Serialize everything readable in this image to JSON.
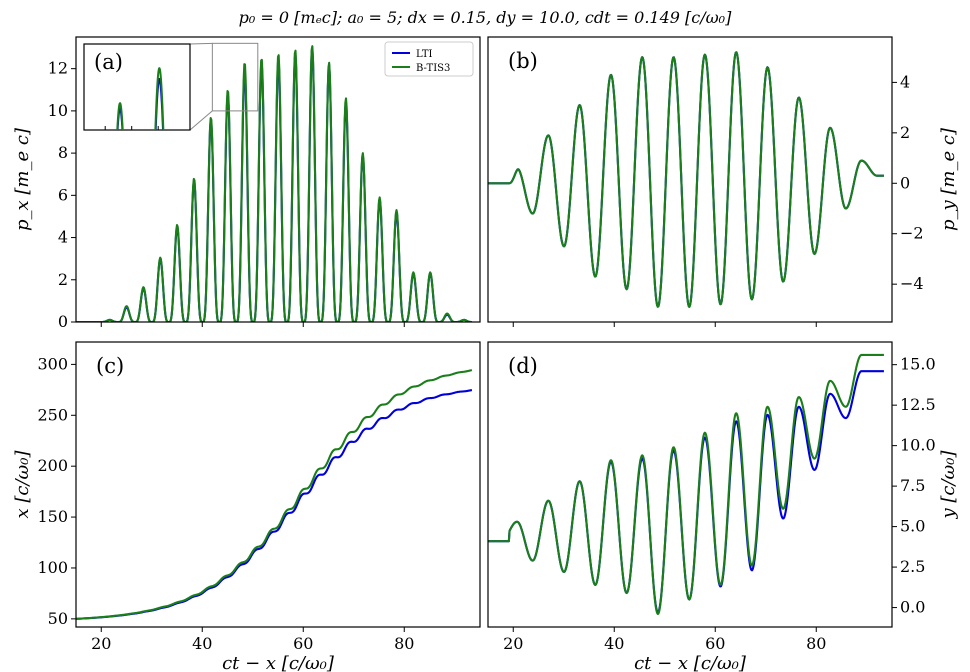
{
  "figure": {
    "title": "p₀ = 0 [mₑc];  a₀ = 5;  dx = 0.15,  dy = 10.0,  cdt = 0.149 [c/ω₀]",
    "legend": {
      "placement": "top-right of panel (a)",
      "items": [
        "LTI",
        "B-TIS3"
      ]
    },
    "colors": {
      "LTI": "#0000dd",
      "B-TIS3": "#1a7f1a"
    }
  },
  "chart_data": [
    {
      "id": "a",
      "type": "line",
      "panel_label": "(a)",
      "xlabel": "",
      "ylabel": "p_x [m_e c]",
      "xlim": [
        15,
        95
      ],
      "ylim": [
        0,
        13.5
      ],
      "yticks": [
        "0",
        "2",
        "4",
        "6",
        "8",
        "10",
        "12"
      ],
      "xticks": [],
      "x_start": 20,
      "x_end": 93.5,
      "wavelength": 6.2,
      "series": [
        {
          "name": "LTI",
          "peaks": [
            0.1,
            0.7,
            1.6,
            3.0,
            4.5,
            6.7,
            9.6,
            10.8,
            11.9,
            12.3,
            12.4,
            12.7,
            13.0,
            12.2,
            10.4,
            7.9,
            5.8,
            5.2,
            2.3,
            2.3,
            0.35,
            0.1
          ]
        },
        {
          "name": "B-TIS3",
          "peaks": [
            0.1,
            0.75,
            1.65,
            3.05,
            4.6,
            6.8,
            9.7,
            11.0,
            12.3,
            12.5,
            12.7,
            12.9,
            13.1,
            12.3,
            10.6,
            8.0,
            5.9,
            5.3,
            2.35,
            2.35,
            0.4,
            0.1
          ]
        }
      ],
      "inset": {
        "panel_label": "(a)",
        "x_range": [
          42,
          51
        ],
        "y_range": [
          10,
          13.2
        ]
      }
    },
    {
      "id": "b",
      "type": "line",
      "panel_label": "(b)",
      "xlabel": "",
      "ylabel": "p_y [m_e c]",
      "xlim": [
        15,
        95
      ],
      "ylim": [
        -5.5,
        5.8
      ],
      "yticks": [
        "−4",
        "−2",
        "0",
        "2",
        "4"
      ],
      "xticks": [],
      "wavelength": 6.2,
      "series": [
        {
          "name": "LTI",
          "extremes": [
            0.6,
            -1.2,
            1.9,
            -2.5,
            3.1,
            -3.7,
            4.3,
            -4.2,
            5.0,
            -4.9,
            5.0,
            -4.9,
            5.1,
            -4.8,
            5.2,
            -4.6,
            4.6,
            -3.9,
            3.4,
            -2.8,
            2.2,
            -1.0,
            0.9,
            0.3
          ]
        },
        {
          "name": "B-TIS3",
          "extremes": [
            0.6,
            -1.2,
            1.9,
            -2.5,
            3.1,
            -3.7,
            4.3,
            -4.2,
            5.0,
            -4.9,
            5.0,
            -4.9,
            5.1,
            -4.8,
            5.2,
            -4.6,
            4.6,
            -3.9,
            3.4,
            -2.8,
            2.2,
            -1.0,
            0.9,
            0.3
          ]
        }
      ]
    },
    {
      "id": "c",
      "type": "line",
      "panel_label": "(c)",
      "xlabel": "ct − x [c/ω₀]",
      "ylabel": "x [c/ω₀]",
      "xlim": [
        15,
        95
      ],
      "ylim": [
        42,
        322
      ],
      "yticks": [
        "50",
        "100",
        "150",
        "200",
        "250",
        "300"
      ],
      "xticks": [
        "20",
        "40",
        "60",
        "80"
      ],
      "series": [
        {
          "name": "LTI",
          "x0": 50,
          "amplitude": 233,
          "center": 59,
          "width": 9.5
        },
        {
          "name": "B-TIS3",
          "x0": 50,
          "amplitude": 255,
          "center": 60,
          "width": 9.8
        }
      ]
    },
    {
      "id": "d",
      "type": "line",
      "panel_label": "(d)",
      "xlabel": "ct − x [c/ω₀]",
      "ylabel": "y [c/ω₀]",
      "xlim": [
        15,
        95
      ],
      "ylim": [
        -1.2,
        16.4
      ],
      "yticks": [
        "0.0",
        "2.5",
        "5.0",
        "7.5",
        "10.0",
        "12.5",
        "15.0"
      ],
      "xticks": [
        "20",
        "40",
        "60",
        "80"
      ],
      "wavelength": 6.2,
      "series": [
        {
          "name": "LTI",
          "extremes": [
            5.3,
            2.9,
            6.6,
            2.2,
            7.8,
            1.4,
            9.0,
            0.9,
            9.2,
            -0.3,
            9.7,
            0.5,
            10.5,
            1.3,
            11.5,
            2.3,
            11.9,
            5.5,
            12.4,
            8.5,
            13.2,
            11.7,
            14.6
          ]
        },
        {
          "name": "B-TIS3",
          "extremes": [
            5.3,
            2.9,
            6.6,
            2.2,
            7.8,
            1.4,
            9.1,
            0.9,
            9.4,
            -0.4,
            9.9,
            0.5,
            10.8,
            1.4,
            12.0,
            2.6,
            12.4,
            6.1,
            13.0,
            9.2,
            14.0,
            12.4,
            15.6
          ]
        }
      ]
    }
  ]
}
